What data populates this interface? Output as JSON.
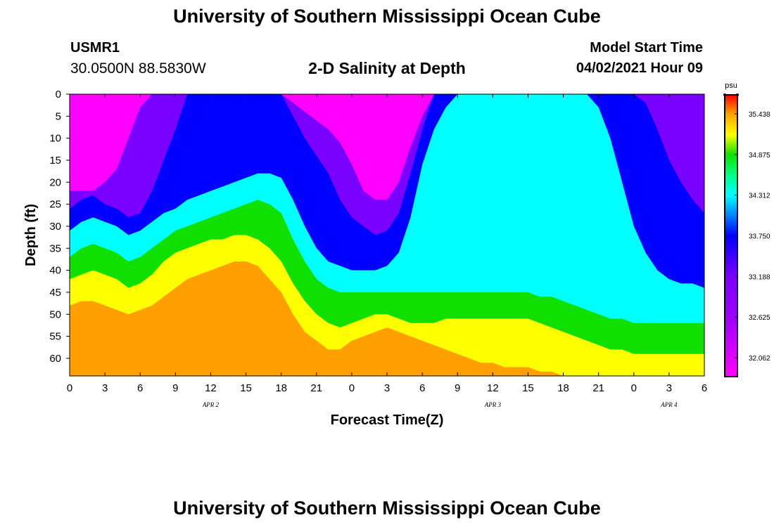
{
  "header": {
    "title": "University of Southern Mississippi Ocean Cube",
    "station": "USMR1",
    "coordinates": "30.0500N  88.5830W",
    "subtitle": "2-D Salinity at Depth",
    "model_start_label": "Model Start Time",
    "model_start_value": "04/02/2021 Hour 09"
  },
  "footer": {
    "title": "University of Southern Mississippi Ocean Cube"
  },
  "chart_data": {
    "type": "heatmap",
    "title": "2-D Salinity at Depth",
    "xlabel": "Forecast Time(Z)",
    "ylabel": "Depth (ft)",
    "x_hours_range": [
      0,
      54
    ],
    "ylim": [
      0,
      64
    ],
    "x_ticks": [
      {
        "h": 0,
        "label": "0"
      },
      {
        "h": 3,
        "label": "3"
      },
      {
        "h": 6,
        "label": "6"
      },
      {
        "h": 9,
        "label": "9"
      },
      {
        "h": 12,
        "label": "12"
      },
      {
        "h": 15,
        "label": "15"
      },
      {
        "h": 18,
        "label": "18"
      },
      {
        "h": 21,
        "label": "21"
      },
      {
        "h": 24,
        "label": "0"
      },
      {
        "h": 27,
        "label": "3"
      },
      {
        "h": 30,
        "label": "6"
      },
      {
        "h": 33,
        "label": "9"
      },
      {
        "h": 36,
        "label": "12"
      },
      {
        "h": 39,
        "label": "15"
      },
      {
        "h": 42,
        "label": "18"
      },
      {
        "h": 45,
        "label": "21"
      },
      {
        "h": 48,
        "label": "0"
      },
      {
        "h": 51,
        "label": "3"
      },
      {
        "h": 54,
        "label": "6"
      }
    ],
    "date_labels": [
      {
        "h": 12,
        "label": "APR 2"
      },
      {
        "h": 36,
        "label": "APR 3"
      },
      {
        "h": 51,
        "label": "APR 4"
      }
    ],
    "y_ticks": [
      0,
      5,
      10,
      15,
      20,
      25,
      30,
      35,
      40,
      45,
      50,
      55,
      60
    ],
    "colorbar": {
      "unit": "psu",
      "range": [
        31.8,
        35.7
      ],
      "ticks": [
        "32.062",
        "32.625",
        "33.188",
        "33.750",
        "34.312",
        "34.875",
        "35.438"
      ],
      "stops": [
        {
          "v": 31.8,
          "c": "#ff00ff"
        },
        {
          "v": 32.6,
          "c": "#a000ff"
        },
        {
          "v": 33.188,
          "c": "#7a00ff"
        },
        {
          "v": 33.75,
          "c": "#0000ff"
        },
        {
          "v": 34.1,
          "c": "#00a0ff"
        },
        {
          "v": 34.312,
          "c": "#00ffff"
        },
        {
          "v": 34.6,
          "c": "#00ff80"
        },
        {
          "v": 34.875,
          "c": "#10e000"
        },
        {
          "v": 35.15,
          "c": "#ffff00"
        },
        {
          "v": 35.438,
          "c": "#ffa000"
        },
        {
          "v": 35.7,
          "c": "#ff0000"
        }
      ]
    },
    "isopycnals": [
      {
        "level": 33.188,
        "depths": [
          22,
          22,
          22,
          20,
          17,
          10,
          3,
          0,
          0,
          0,
          0,
          0,
          0,
          0,
          0,
          0,
          0,
          0,
          0,
          2,
          4,
          6,
          8,
          11,
          16,
          22,
          24,
          24,
          20,
          12,
          5,
          0,
          0,
          0,
          0,
          0,
          0,
          0,
          0,
          0,
          0,
          0,
          0,
          0,
          0,
          0,
          0,
          0,
          0,
          0,
          0,
          0,
          0,
          0,
          0
        ]
      },
      {
        "level": 33.75,
        "depths": [
          26,
          24,
          23,
          25,
          26,
          28,
          27,
          22,
          15,
          8,
          0,
          0,
          0,
          0,
          0,
          0,
          0,
          0,
          0,
          5,
          10,
          14,
          18,
          24,
          28,
          30,
          32,
          31,
          27,
          18,
          8,
          0,
          0,
          0,
          0,
          0,
          0,
          0,
          0,
          0,
          0,
          0,
          0,
          0,
          0,
          0,
          0,
          0,
          0,
          2,
          8,
          15,
          20,
          24,
          27
        ]
      },
      {
        "level": 34.312,
        "depths": [
          31,
          29,
          28,
          29,
          30,
          32,
          31,
          29,
          27,
          26,
          24,
          23,
          22,
          21,
          20,
          19,
          18,
          18,
          19,
          24,
          30,
          35,
          38,
          39,
          40,
          40,
          40,
          39,
          36,
          28,
          16,
          8,
          3,
          0,
          0,
          0,
          0,
          0,
          0,
          0,
          0,
          0,
          0,
          0,
          0,
          3,
          10,
          20,
          30,
          36,
          40,
          42,
          43,
          43,
          44
        ]
      },
      {
        "level": 34.875,
        "depths": [
          37,
          35,
          34,
          35,
          36,
          38,
          37,
          35,
          33,
          31,
          30,
          29,
          28,
          27,
          26,
          25,
          24,
          25,
          27,
          33,
          38,
          42,
          44,
          45,
          45,
          45,
          45,
          45,
          45,
          45,
          45,
          45,
          45,
          45,
          45,
          45,
          45,
          45,
          45,
          45,
          46,
          46,
          47,
          48,
          49,
          50,
          51,
          51,
          52,
          52,
          52,
          52,
          52,
          52,
          52
        ]
      },
      {
        "level": 35.15,
        "depths": [
          42,
          41,
          40,
          41,
          42,
          44,
          43,
          41,
          38,
          36,
          35,
          34,
          33,
          33,
          32,
          32,
          33,
          35,
          38,
          43,
          47,
          50,
          52,
          53,
          52,
          51,
          50,
          50,
          51,
          52,
          52,
          52,
          51,
          51,
          51,
          51,
          51,
          51,
          51,
          51,
          52,
          53,
          54,
          55,
          56,
          57,
          58,
          58,
          59,
          59,
          59,
          59,
          59,
          59,
          59
        ]
      },
      {
        "level": 35.438,
        "depths": [
          48,
          47,
          47,
          48,
          49,
          50,
          49,
          48,
          46,
          44,
          42,
          41,
          40,
          39,
          38,
          38,
          39,
          42,
          45,
          50,
          54,
          56,
          58,
          58,
          56,
          55,
          54,
          53,
          54,
          55,
          56,
          57,
          58,
          59,
          60,
          61,
          61,
          62,
          62,
          62,
          63,
          63,
          64,
          64,
          64,
          64,
          64,
          64,
          64,
          64,
          64,
          64,
          64,
          64,
          64
        ]
      }
    ]
  }
}
